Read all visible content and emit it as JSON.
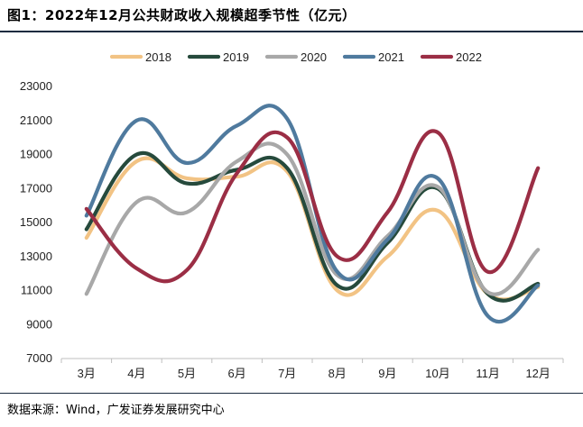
{
  "title": "图1：2022年12月公共财政收入规模超季节性（亿元）",
  "source": "数据来源：Wind，广发证券发展研究中心",
  "chart_data": {
    "type": "line",
    "categories": [
      "3月",
      "4月",
      "5月",
      "6月",
      "7月",
      "8月",
      "9月",
      "10月",
      "11月",
      "12月"
    ],
    "ylim": [
      7000,
      23000
    ],
    "yticks": [
      7000,
      9000,
      11000,
      13000,
      15000,
      17000,
      19000,
      21000,
      23000
    ],
    "legend_position": "top",
    "grid": false,
    "series": [
      {
        "name": "2018",
        "color": "#f2c384",
        "values": [
          14100,
          18600,
          17600,
          17700,
          18000,
          11000,
          13000,
          15700,
          10800,
          11200
        ]
      },
      {
        "name": "2019",
        "color": "#264a3c",
        "values": [
          14600,
          19000,
          17300,
          18100,
          18200,
          11300,
          13800,
          17000,
          10800,
          11400
        ]
      },
      {
        "name": "2020",
        "color": "#a8a8a8",
        "values": [
          10800,
          16200,
          15600,
          18600,
          19000,
          11900,
          14200,
          17100,
          10900,
          13400
        ]
      },
      {
        "name": "2021",
        "color": "#4f7a9e",
        "values": [
          15400,
          21000,
          18500,
          20700,
          21100,
          12100,
          14000,
          17600,
          9500,
          11300
        ]
      },
      {
        "name": "2022",
        "color": "#9b2e45",
        "values": [
          15800,
          12300,
          12200,
          17900,
          20000,
          13000,
          15600,
          20300,
          12100,
          18200
        ]
      }
    ]
  }
}
